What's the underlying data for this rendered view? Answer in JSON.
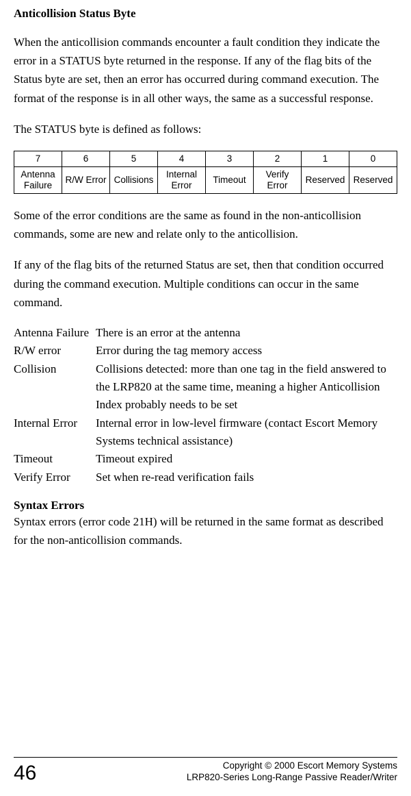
{
  "heading": "Anticollision Status Byte",
  "para1": "When the anticollision commands encounter a fault condition they indicate the error in a STATUS byte returned in the response. If any of the flag bits of the Status byte are set, then an error has occurred during command execu­tion. The format of the response is in all other ways, the same as a successful response.",
  "para2": "The STATUS byte is defined as follows:",
  "table": {
    "bits": [
      "7",
      "6",
      "5",
      "4",
      "3",
      "2",
      "1",
      "0"
    ],
    "labels": [
      "Antenna Failure",
      "R/W Error",
      "Collisions",
      "Internal Error",
      "Timeout",
      "Verify Error",
      "Reserved",
      "Reserved"
    ]
  },
  "para3": "Some of the error conditions are the same as found in the non-anticollision commands, some are new and relate only to the anticollision.",
  "para4": "If any of the flag bits of the returned Status are set, then that condition oc­curred during the command execution. Multiple conditions can occur in the same command.",
  "defs": [
    {
      "term": "Antenna Failure",
      "desc": "There is an error at the antenna"
    },
    {
      "term": "R/W error",
      "desc": "Error during the tag memory access"
    },
    {
      "term": "Collision",
      "desc": "Collisions detected: more than one tag in the field answered to the LRP820 at the same time, meaning a higher Anticollision Index probably needs to be set"
    },
    {
      "term": "Internal Error",
      "desc": "Internal error in low-level firmware (contact Escort Memory Systems technical assistance)"
    },
    {
      "term": "Timeout",
      "desc": "Timeout expired"
    },
    {
      "term": "Verify Error",
      "desc": "Set when re-read verification fails"
    }
  ],
  "subheading": "Syntax Errors",
  "para5": "Syntax errors (error code 21H) will be returned in the same format as described for the non-anticollision commands.",
  "footer": {
    "page": "46",
    "line1": "Copyright © 2000 Escort Memory Systems",
    "line2": "LRP820-Series Long-Range Passive Reader/Writer"
  }
}
